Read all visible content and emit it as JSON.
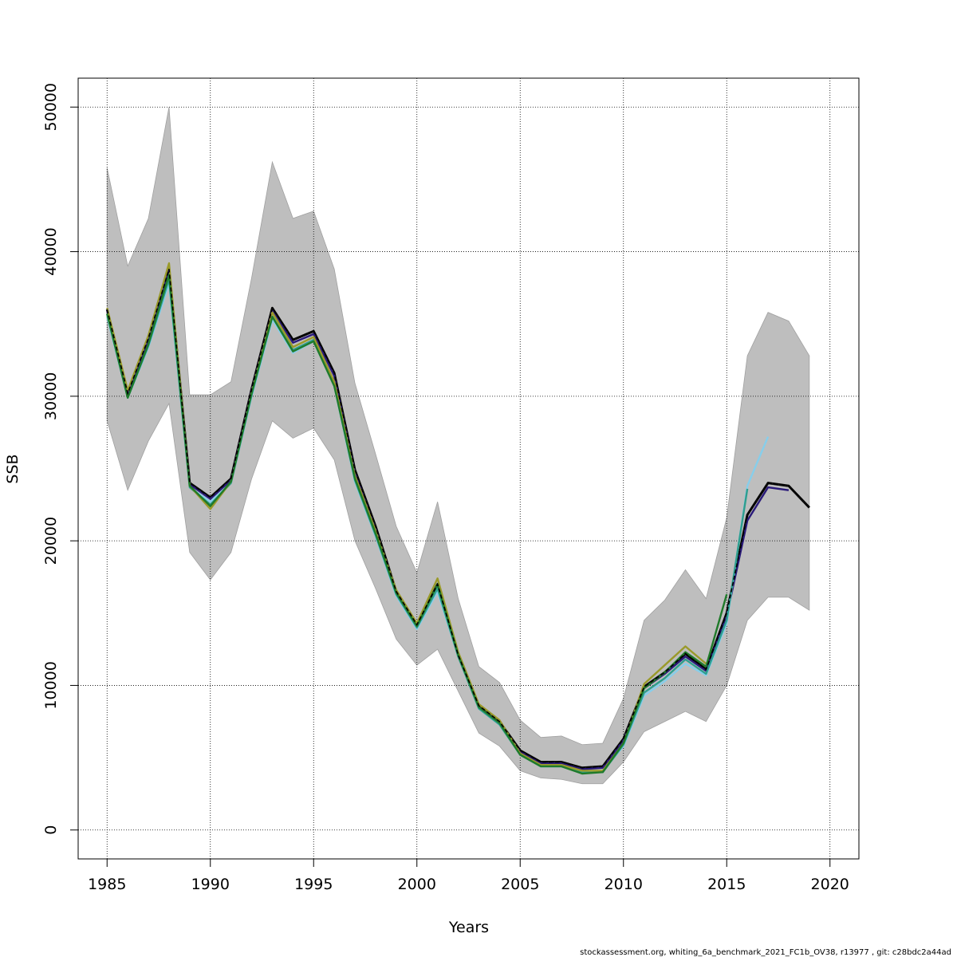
{
  "chart_data": {
    "type": "line",
    "xlabel": "Years",
    "ylabel": "SSB",
    "xlim": [
      1983.6,
      2021.4
    ],
    "ylim": [
      -2000,
      52000
    ],
    "x_ticks": [
      1985,
      1990,
      1995,
      2000,
      2005,
      2010,
      2015,
      2020
    ],
    "y_ticks": [
      0,
      10000,
      20000,
      30000,
      40000,
      50000
    ],
    "grid": true,
    "confidence_band": {
      "color": "#bebebe",
      "x": [
        1985,
        1986,
        1987,
        1988,
        1989,
        1990,
        1991,
        1992,
        1993,
        1994,
        1995,
        1996,
        1997,
        1998,
        1999,
        2000,
        2001,
        2002,
        2003,
        2004,
        2005,
        2006,
        2007,
        2008,
        2009,
        2010,
        2011,
        2012,
        2013,
        2014,
        2015,
        2016,
        2017,
        2018,
        2019
      ],
      "upper": [
        45800,
        39000,
        42300,
        50000,
        30100,
        30100,
        31000,
        38200,
        46200,
        42300,
        42800,
        38800,
        30900,
        26000,
        21000,
        17800,
        22700,
        16000,
        11300,
        10200,
        7600,
        6400,
        6500,
        5900,
        6000,
        9100,
        14500,
        15900,
        18000,
        16000,
        21600,
        32800,
        35800,
        35200,
        32800
      ],
      "lower": [
        28300,
        23500,
        26900,
        29500,
        19200,
        17300,
        19200,
        24300,
        28300,
        27100,
        27800,
        25600,
        20000,
        16700,
        13200,
        11400,
        12500,
        9600,
        6700,
        5800,
        4100,
        3600,
        3500,
        3200,
        3200,
        4700,
        6800,
        7500,
        8200,
        7500,
        10000,
        14500,
        16100,
        16100,
        15200
      ]
    },
    "series": [
      {
        "color": "#000000",
        "dashed": true,
        "x": [
          1985,
          1986,
          1987,
          1988,
          1989,
          1990,
          1991,
          1992,
          1993,
          1994,
          1995,
          1996,
          1997,
          1998,
          1999,
          2000,
          2001,
          2002,
          2003,
          2004,
          2005,
          2006,
          2007,
          2008,
          2009,
          2010,
          2011,
          2012,
          2013,
          2014,
          2015,
          2016,
          2017,
          2018,
          2019
        ],
        "values": [
          36000,
          30200,
          34000,
          38800,
          24000,
          23000,
          24300,
          30500,
          36100,
          33900,
          34500,
          31600,
          24900,
          21000,
          16500,
          14200,
          17000,
          12100,
          8600,
          7500,
          5500,
          4700,
          4700,
          4300,
          4400,
          6300,
          9900,
          10900,
          12200,
          11100,
          15000,
          21800,
          24000,
          23800,
          22300
        ]
      },
      {
        "color": "#2a1a7a",
        "dashed": false,
        "x": [
          1985,
          1986,
          1987,
          1988,
          1989,
          1990,
          1991,
          1992,
          1993,
          1994,
          1995,
          1996,
          1997,
          1998,
          1999,
          2000,
          2001,
          2002,
          2003,
          2004,
          2005,
          2006,
          2007,
          2008,
          2009,
          2010,
          2011,
          2012,
          2013,
          2014,
          2015,
          2016,
          2017,
          2018
        ],
        "values": [
          36000,
          30100,
          33900,
          38700,
          23900,
          22900,
          24200,
          30400,
          35900,
          33700,
          34300,
          31400,
          24700,
          20800,
          16400,
          14100,
          16900,
          12000,
          8500,
          7400,
          5400,
          4600,
          4600,
          4200,
          4300,
          6200,
          9800,
          10800,
          12000,
          11000,
          14800,
          21400,
          23700,
          23500
        ]
      },
      {
        "color": "#87ceeb",
        "dashed": false,
        "x": [
          1985,
          1986,
          1987,
          1988,
          1989,
          1990,
          1991,
          1992,
          1993,
          1994,
          1995,
          1996,
          1997,
          1998,
          1999,
          2000,
          2001,
          2002,
          2003,
          2004,
          2005,
          2006,
          2007,
          2008,
          2009,
          2010,
          2011,
          2012,
          2013,
          2014,
          2015,
          2016,
          2017
        ],
        "values": [
          35500,
          29900,
          33400,
          37800,
          23700,
          22700,
          24000,
          30000,
          35300,
          33000,
          33800,
          30700,
          24100,
          20300,
          16200,
          13900,
          16500,
          12000,
          8400,
          7300,
          5200,
          4400,
          4400,
          4000,
          4100,
          5800,
          9300,
          10300,
          11500,
          10700,
          14300,
          23800,
          27200
        ]
      },
      {
        "color": "#2e9e8e",
        "dashed": false,
        "x": [
          1985,
          1986,
          1987,
          1988,
          1989,
          1990,
          1991,
          1992,
          1993,
          1994,
          1995,
          1996,
          1997,
          1998,
          1999,
          2000,
          2001,
          2002,
          2003,
          2004,
          2005,
          2006,
          2007,
          2008,
          2009,
          2010,
          2011,
          2012,
          2013,
          2014,
          2015,
          2016
        ],
        "values": [
          35700,
          29900,
          33500,
          38100,
          23700,
          22500,
          24000,
          30100,
          35500,
          33200,
          33900,
          30800,
          24200,
          20400,
          16300,
          14000,
          16700,
          12000,
          8400,
          7300,
          5200,
          4400,
          4400,
          4000,
          4000,
          5900,
          9500,
          10500,
          11800,
          10800,
          14500,
          23600
        ]
      },
      {
        "color": "#9a9a2a",
        "dashed": false,
        "x": [
          1985,
          1986,
          1987,
          1988,
          1989,
          1990,
          1991,
          1992,
          1993,
          1994,
          1995,
          1996,
          1997,
          1998,
          1999,
          2000,
          2001,
          2002,
          2003,
          2004,
          2005,
          2006,
          2007,
          2008,
          2009,
          2010,
          2011,
          2012,
          2013,
          2014
        ],
        "values": [
          36100,
          30400,
          34200,
          39200,
          23800,
          22200,
          24100,
          30300,
          35800,
          33400,
          34100,
          31000,
          24500,
          20700,
          16600,
          14300,
          17400,
          12300,
          8700,
          7600,
          5300,
          4500,
          4500,
          4100,
          4100,
          6000,
          10100,
          11400,
          12700,
          11500
        ]
      },
      {
        "color": "#1f7a2a",
        "dashed": false,
        "x": [
          1985,
          1986,
          1987,
          1988,
          1989,
          1990,
          1991,
          1992,
          1993,
          1994,
          1995,
          1996,
          1997,
          1998,
          1999,
          2000,
          2001,
          2002,
          2003,
          2004,
          2005,
          2006,
          2007,
          2008,
          2009,
          2010,
          2011,
          2012,
          2013,
          2014,
          2015
        ],
        "values": [
          35700,
          29900,
          33600,
          38400,
          23800,
          22400,
          24100,
          30200,
          35500,
          33100,
          33800,
          30700,
          24300,
          20500,
          16400,
          14100,
          17000,
          12100,
          8500,
          7400,
          5200,
          4400,
          4400,
          3900,
          4000,
          6000,
          9800,
          10900,
          12300,
          11300,
          16300
        ]
      }
    ]
  },
  "footer": {
    "text": "stockassessment.org, whiting_6a_benchmark_2021_FC1b_OV38, r13977 , git: c28bdc2a44ad"
  }
}
